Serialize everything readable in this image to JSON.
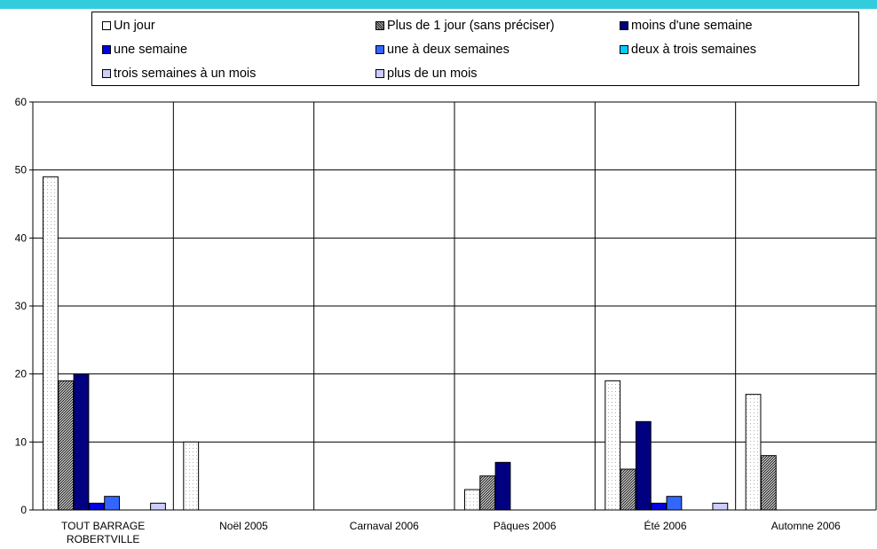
{
  "chart_data": {
    "type": "bar",
    "categories": [
      "TOUT BARRAGE ROBERTVILLE",
      "Noël 2005",
      "Carnaval 2006",
      "Pâques 2006",
      "Été 2006",
      "Automne 2006"
    ],
    "category_lines": [
      [
        "TOUT BARRAGE",
        "ROBERTVILLE"
      ],
      [
        "Noël 2005"
      ],
      [
        "Carnaval 2006"
      ],
      [
        "Pâques 2006"
      ],
      [
        "Été 2006"
      ],
      [
        "Automne 2006"
      ]
    ],
    "ylim": [
      0,
      60
    ],
    "yticks": [
      "0",
      "10",
      "20",
      "30",
      "40",
      "50",
      "60"
    ],
    "grid": true,
    "legend_position": "top",
    "series": [
      {
        "name": "Un jour",
        "color": "#fafafa",
        "values": [
          49,
          10,
          0,
          3,
          19,
          17
        ]
      },
      {
        "name": "Plus de 1 jour (sans préciser)",
        "color": "#8c8c8c",
        "values": [
          19,
          0,
          0,
          5,
          6,
          8
        ]
      },
      {
        "name": "moins d'une semaine",
        "color": "#000080",
        "values": [
          20,
          0,
          0,
          7,
          13,
          0
        ]
      },
      {
        "name": "une semaine",
        "color": "#0000e0",
        "values": [
          1,
          0,
          0,
          0,
          1,
          0
        ]
      },
      {
        "name": "une à deux semaines",
        "color": "#3366ff",
        "values": [
          2,
          0,
          0,
          0,
          2,
          0
        ]
      },
      {
        "name": "deux à trois semaines",
        "color": "#00ccff",
        "values": [
          0,
          0,
          0,
          0,
          0,
          0
        ]
      },
      {
        "name": "trois semaines à un mois",
        "color": "#ccccff",
        "values": [
          0,
          0,
          0,
          0,
          0,
          0
        ]
      },
      {
        "name": "plus de un mois",
        "color": "#ccccff",
        "values": [
          1,
          0,
          0,
          0,
          1,
          0
        ]
      }
    ]
  }
}
